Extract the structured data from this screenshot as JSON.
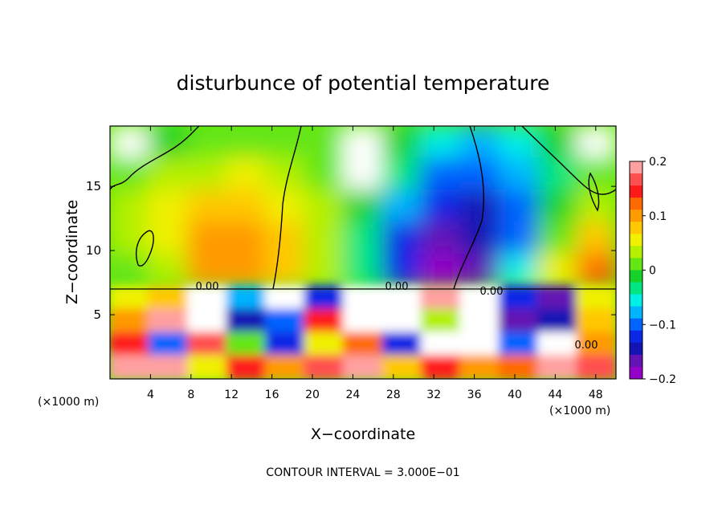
{
  "chart_data": {
    "type": "heatmap",
    "title": "disturbunce of potential temperature",
    "xlabel": "X−coordinate",
    "ylabel": "Z−coordinate",
    "x_unit_left": "(×1000 m)",
    "x_unit_right": "(×1000 m)",
    "footer": "CONTOUR INTERVAL = 3.000E−01",
    "xlim": [
      0,
      50
    ],
    "ylim": [
      0,
      19.7
    ],
    "x_ticks": [
      4,
      8,
      12,
      16,
      20,
      24,
      28,
      32,
      36,
      40,
      44,
      48
    ],
    "x_tick_labels": [
      "4",
      "8",
      "12",
      "16",
      "20",
      "24",
      "28",
      "32",
      "36",
      "40",
      "44",
      "48"
    ],
    "y_ticks": [
      5,
      10,
      15
    ],
    "y_tick_labels": [
      "5",
      "10",
      "15"
    ],
    "colorbar": {
      "range": [
        -0.2,
        0.2
      ],
      "ticks": [
        0.2,
        0.1,
        0,
        -0.1,
        -0.2
      ],
      "tick_labels": [
        "0.2",
        "0.1",
        "0",
        "−0.1",
        "−0.2"
      ],
      "colors": [
        "#ffa0a0",
        "#ff5050",
        "#ff1a1a",
        "#ff6a00",
        "#ff9a00",
        "#ffc800",
        "#f0f000",
        "#b4f000",
        "#64e614",
        "#14d228",
        "#00e682",
        "#00f0e6",
        "#00b4ff",
        "#0064ff",
        "#0a28e6",
        "#1414b4",
        "#6414b4",
        "#9600c8"
      ]
    },
    "contour_labels": [
      "0.00",
      "0.00",
      "0.00",
      "0.00"
    ],
    "upper_field": [
      [
        0.0,
        -0.01,
        0.01,
        0.02,
        0.02,
        0.01,
        0.0,
        -0.01,
        -0.06,
        -0.08,
        -0.06,
        -0.02,
        0.0
      ],
      [
        0.02,
        0.03,
        0.04,
        0.05,
        0.04,
        0.02,
        0.0,
        -0.04,
        -0.1,
        -0.11,
        -0.08,
        -0.03,
        0.02
      ],
      [
        0.04,
        0.05,
        0.07,
        0.07,
        0.06,
        0.03,
        -0.02,
        -0.08,
        -0.13,
        -0.14,
        -0.1,
        -0.02,
        0.04
      ],
      [
        0.03,
        0.05,
        0.1,
        0.11,
        0.08,
        0.03,
        -0.04,
        -0.12,
        -0.17,
        -0.15,
        -0.09,
        0.02,
        0.07
      ],
      [
        0.02,
        0.04,
        0.09,
        0.1,
        0.07,
        0.04,
        -0.03,
        -0.13,
        -0.2,
        -0.16,
        -0.05,
        0.05,
        0.12
      ]
    ],
    "lower_field": [
      [
        0.05,
        0.08,
        0.0,
        -0.08,
        0.0,
        -0.12,
        0.0,
        0.0,
        0.18,
        0.0,
        -0.12,
        -0.16,
        0.05
      ],
      [
        0.1,
        0.18,
        0.0,
        -0.14,
        -0.1,
        0.14,
        0.0,
        0.0,
        0.04,
        0.0,
        -0.16,
        -0.14,
        0.08
      ],
      [
        0.14,
        -0.1,
        0.16,
        0.02,
        -0.12,
        0.05,
        0.12,
        -0.12,
        0.0,
        0.0,
        -0.1,
        0.0,
        0.1
      ],
      [
        0.2,
        0.18,
        0.06,
        0.15,
        0.1,
        0.16,
        0.2,
        0.08,
        0.14,
        0.1,
        0.12,
        0.2,
        0.16
      ]
    ]
  }
}
